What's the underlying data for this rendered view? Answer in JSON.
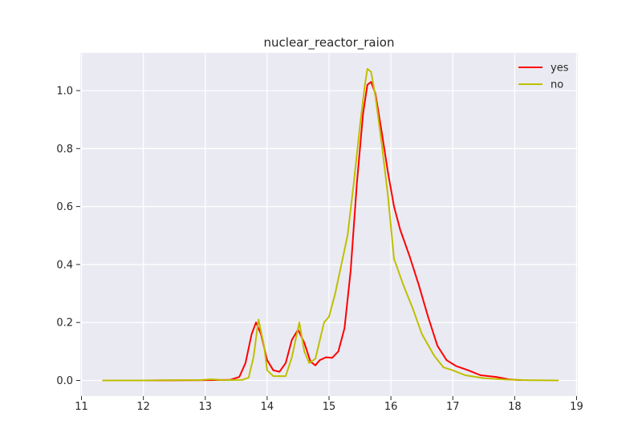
{
  "chart_data": {
    "type": "line",
    "title": "nuclear_reactor_raion",
    "xlabel": "",
    "ylabel": "",
    "xlim": [
      10.98,
      19.02
    ],
    "ylim": [
      -0.054,
      1.13
    ],
    "xticks": [
      11,
      12,
      13,
      14,
      15,
      16,
      17,
      18,
      19
    ],
    "yticks": [
      0.0,
      0.2,
      0.4,
      0.6,
      0.8,
      1.0
    ],
    "ytick_labels": [
      "0.0",
      "0.2",
      "0.4",
      "0.6",
      "0.8",
      "1.0"
    ],
    "grid": true,
    "legend_position": "top-right",
    "series": [
      {
        "name": "yes",
        "color": "#ff0000",
        "points": [
          [
            11.35,
            0.0
          ],
          [
            12.0,
            0.0
          ],
          [
            13.0,
            0.001
          ],
          [
            13.4,
            0.002
          ],
          [
            13.55,
            0.012
          ],
          [
            13.65,
            0.06
          ],
          [
            13.75,
            0.16
          ],
          [
            13.82,
            0.2
          ],
          [
            13.9,
            0.16
          ],
          [
            14.0,
            0.07
          ],
          [
            14.1,
            0.035
          ],
          [
            14.2,
            0.03
          ],
          [
            14.3,
            0.06
          ],
          [
            14.4,
            0.14
          ],
          [
            14.5,
            0.175
          ],
          [
            14.6,
            0.13
          ],
          [
            14.7,
            0.065
          ],
          [
            14.78,
            0.052
          ],
          [
            14.85,
            0.07
          ],
          [
            14.95,
            0.08
          ],
          [
            15.05,
            0.078
          ],
          [
            15.15,
            0.1
          ],
          [
            15.25,
            0.18
          ],
          [
            15.35,
            0.38
          ],
          [
            15.45,
            0.68
          ],
          [
            15.55,
            0.92
          ],
          [
            15.62,
            1.02
          ],
          [
            15.68,
            1.03
          ],
          [
            15.75,
            0.99
          ],
          [
            15.85,
            0.86
          ],
          [
            15.95,
            0.72
          ],
          [
            16.05,
            0.6
          ],
          [
            16.15,
            0.52
          ],
          [
            16.3,
            0.43
          ],
          [
            16.45,
            0.33
          ],
          [
            16.6,
            0.22
          ],
          [
            16.75,
            0.12
          ],
          [
            16.9,
            0.07
          ],
          [
            17.05,
            0.05
          ],
          [
            17.25,
            0.035
          ],
          [
            17.45,
            0.018
          ],
          [
            17.7,
            0.012
          ],
          [
            17.9,
            0.004
          ],
          [
            18.1,
            0.001
          ]
        ]
      },
      {
        "name": "no",
        "color": "#bfbf00",
        "points": [
          [
            11.35,
            0.0
          ],
          [
            12.0,
            0.0
          ],
          [
            12.5,
            0.001
          ],
          [
            12.9,
            0.001
          ],
          [
            13.1,
            0.004
          ],
          [
            13.3,
            0.001
          ],
          [
            13.6,
            0.002
          ],
          [
            13.7,
            0.01
          ],
          [
            13.78,
            0.08
          ],
          [
            13.86,
            0.21
          ],
          [
            13.95,
            0.12
          ],
          [
            14.0,
            0.035
          ],
          [
            14.1,
            0.015
          ],
          [
            14.2,
            0.015
          ],
          [
            14.3,
            0.015
          ],
          [
            14.4,
            0.08
          ],
          [
            14.52,
            0.2
          ],
          [
            14.6,
            0.1
          ],
          [
            14.68,
            0.06
          ],
          [
            14.78,
            0.075
          ],
          [
            14.92,
            0.2
          ],
          [
            15.0,
            0.22
          ],
          [
            15.1,
            0.3
          ],
          [
            15.2,
            0.4
          ],
          [
            15.3,
            0.5
          ],
          [
            15.4,
            0.68
          ],
          [
            15.5,
            0.88
          ],
          [
            15.58,
            1.02
          ],
          [
            15.62,
            1.075
          ],
          [
            15.68,
            1.065
          ],
          [
            15.75,
            0.98
          ],
          [
            15.85,
            0.82
          ],
          [
            15.95,
            0.64
          ],
          [
            16.05,
            0.42
          ],
          [
            16.2,
            0.33
          ],
          [
            16.35,
            0.25
          ],
          [
            16.5,
            0.16
          ],
          [
            16.7,
            0.085
          ],
          [
            16.85,
            0.045
          ],
          [
            17.0,
            0.035
          ],
          [
            17.2,
            0.018
          ],
          [
            17.5,
            0.008
          ],
          [
            17.85,
            0.003
          ],
          [
            18.2,
            0.001
          ],
          [
            18.7,
            0.0
          ]
        ]
      }
    ]
  }
}
